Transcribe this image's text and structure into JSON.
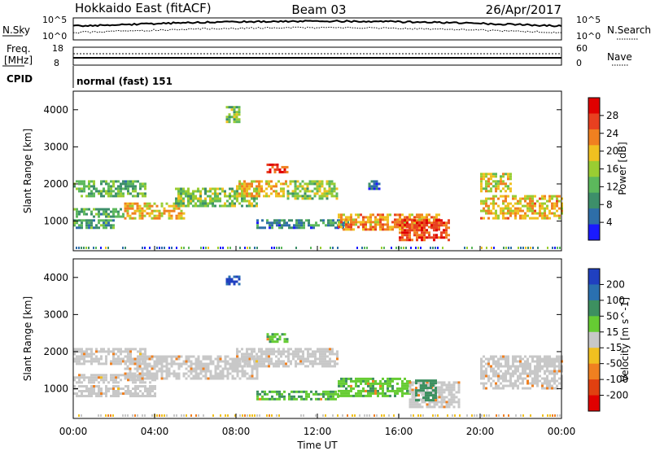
{
  "header": {
    "radar": "Hokkaido East (fitACF)",
    "beam": "Beam 03",
    "date": "26/Apr/2017"
  },
  "noise_panel": {
    "left_label": "N.Sky",
    "right_label": "N.Search",
    "ticks_left": [
      "10^5",
      "10^0"
    ],
    "ticks_right": [
      "10^5",
      "10^0"
    ]
  },
  "freq_panel": {
    "left_label_line1": "Freq.",
    "left_label_line2": "[MHz]",
    "right_label": "Nave",
    "ticks_left": [
      "18",
      "8"
    ],
    "ticks_right": [
      "60",
      "0"
    ]
  },
  "cpid": {
    "label": "CPID",
    "value": "normal (fast) 151"
  },
  "chart_data": [
    {
      "type": "heatmap",
      "name": "power",
      "ylabel": "Slant Range [km]",
      "yticks": [
        "1000",
        "2000",
        "3000",
        "4000"
      ],
      "ylim": [
        200,
        4500
      ],
      "xlim": [
        0,
        24
      ],
      "colorbar": {
        "label": "Power [dB]",
        "ticks": [
          "4",
          "8",
          "12",
          "16",
          "20",
          "24",
          "28"
        ],
        "range": [
          0,
          32
        ],
        "colors": [
          "#1a1aff",
          "#2e6ea8",
          "#3d8f6a",
          "#5cb85c",
          "#9acd32",
          "#f0c020",
          "#f08020",
          "#e84020",
          "#e00000"
        ]
      },
      "regions": [
        {
          "t": [
            0.0,
            2.0
          ],
          "range": [
            850,
            1050
          ],
          "level": 10
        },
        {
          "t": [
            0.0,
            2.5
          ],
          "range": [
            1150,
            1350
          ],
          "level": 11
        },
        {
          "t": [
            0.0,
            3.5
          ],
          "range": [
            1700,
            2100
          ],
          "level": 12
        },
        {
          "t": [
            2.5,
            5.5
          ],
          "range": [
            1100,
            1500
          ],
          "level": 20
        },
        {
          "t": [
            5.0,
            9.0
          ],
          "range": [
            1400,
            1900
          ],
          "level": 14
        },
        {
          "t": [
            8.0,
            10.5
          ],
          "range": [
            1700,
            2100
          ],
          "level": 20
        },
        {
          "t": [
            9.5,
            10.5
          ],
          "range": [
            2300,
            2550
          ],
          "level": 26
        },
        {
          "t": [
            10.5,
            13.0
          ],
          "range": [
            1600,
            2100
          ],
          "level": 15
        },
        {
          "t": [
            7.5,
            8.2
          ],
          "range": [
            3700,
            4100
          ],
          "level": 14
        },
        {
          "t": [
            9.0,
            13.5
          ],
          "range": [
            800,
            1050
          ],
          "level": 8
        },
        {
          "t": [
            13.0,
            18.0
          ],
          "range": [
            800,
            1200
          ],
          "level": 22
        },
        {
          "t": [
            16.0,
            18.5
          ],
          "range": [
            500,
            1050
          ],
          "level": 27
        },
        {
          "t": [
            20.0,
            24.0
          ],
          "range": [
            1100,
            1700
          ],
          "level": 20
        },
        {
          "t": [
            20.0,
            21.5
          ],
          "range": [
            1800,
            2300
          ],
          "level": 18
        },
        {
          "t": [
            14.5,
            15.0
          ],
          "range": [
            1900,
            2100
          ],
          "level": 7
        }
      ]
    },
    {
      "type": "heatmap",
      "name": "velocity",
      "ylabel": "Slant Range [km]",
      "yticks": [
        "1000",
        "2000",
        "3000",
        "4000"
      ],
      "ylim": [
        200,
        4500
      ],
      "xlim": [
        0,
        24
      ],
      "xticks": [
        "00:00",
        "04:00",
        "08:00",
        "12:00",
        "16:00",
        "20:00",
        "00:00"
      ],
      "xlabel": "Time UT",
      "colorbar": {
        "label": "Velocity [m s^-1]",
        "ticks": [
          "200",
          "100",
          "50",
          "15",
          "-15",
          "-50",
          "-100",
          "-200"
        ],
        "colors": [
          "#2040c0",
          "#2a70b0",
          "#3d9060",
          "#66cc33",
          "#c8c8c8",
          "#f0c020",
          "#f08020",
          "#e04010",
          "#e00000"
        ]
      },
      "regions": [
        {
          "t": [
            0.0,
            4.0
          ],
          "range": [
            800,
            1100
          ],
          "v": 0
        },
        {
          "t": [
            0.0,
            4.0
          ],
          "range": [
            1200,
            1400
          ],
          "v": 0
        },
        {
          "t": [
            0.0,
            3.5
          ],
          "range": [
            1700,
            2100
          ],
          "v": 0
        },
        {
          "t": [
            2.5,
            9.0
          ],
          "range": [
            1300,
            1900
          ],
          "v": 0
        },
        {
          "t": [
            8.0,
            13.0
          ],
          "range": [
            1600,
            2100
          ],
          "v": 0
        },
        {
          "t": [
            9.5,
            10.5
          ],
          "range": [
            2300,
            2500
          ],
          "v": 30
        },
        {
          "t": [
            9.0,
            13.0
          ],
          "range": [
            700,
            950
          ],
          "v": 30
        },
        {
          "t": [
            13.0,
            16.5
          ],
          "range": [
            800,
            1300
          ],
          "v": 25
        },
        {
          "t": [
            16.5,
            19.0
          ],
          "range": [
            500,
            1200
          ],
          "v": 0
        },
        {
          "t": [
            16.8,
            17.8
          ],
          "range": [
            700,
            1250
          ],
          "v": 60
        },
        {
          "t": [
            20.0,
            24.0
          ],
          "range": [
            1000,
            1900
          ],
          "v": 0
        },
        {
          "t": [
            7.5,
            8.2
          ],
          "range": [
            3800,
            4050
          ],
          "v": 150
        }
      ]
    }
  ]
}
